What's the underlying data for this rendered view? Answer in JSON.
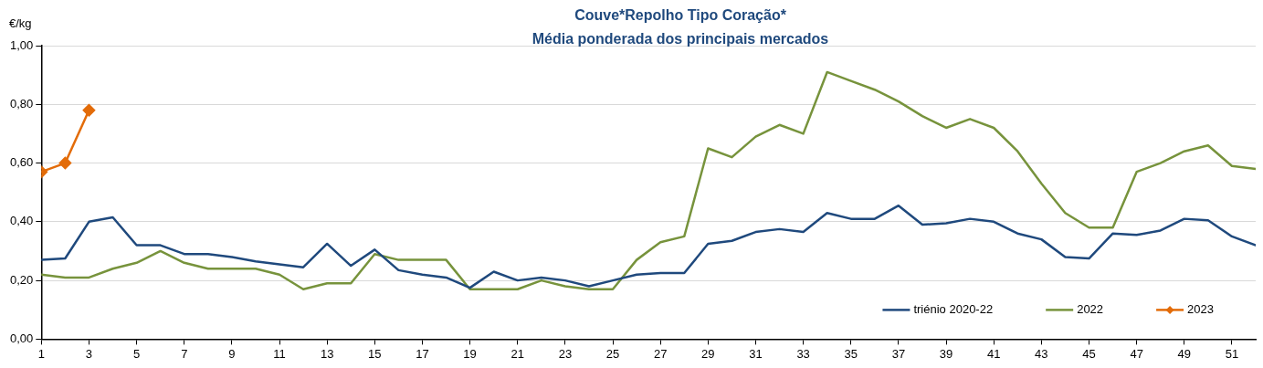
{
  "chart_data": {
    "type": "line",
    "title": "Couve*Repolho Tipo Coração*",
    "subtitle": "Média ponderada dos principais mercados",
    "ylabel": "€/kg",
    "x": [
      1,
      2,
      3,
      4,
      5,
      6,
      7,
      8,
      9,
      10,
      11,
      12,
      13,
      14,
      15,
      16,
      17,
      18,
      19,
      20,
      21,
      22,
      23,
      24,
      25,
      26,
      27,
      28,
      29,
      30,
      31,
      32,
      33,
      34,
      35,
      36,
      37,
      38,
      39,
      40,
      41,
      42,
      43,
      44,
      45,
      46,
      47,
      48,
      49,
      50,
      51,
      52
    ],
    "xlim": [
      1,
      52
    ],
    "xticks": [
      1,
      3,
      5,
      7,
      9,
      11,
      13,
      15,
      17,
      19,
      21,
      23,
      25,
      27,
      29,
      31,
      33,
      35,
      37,
      39,
      41,
      43,
      45,
      47,
      49,
      51
    ],
    "ylim": [
      0,
      1
    ],
    "yticks": [
      {
        "value": 0,
        "label": "0,00"
      },
      {
        "value": 0.2,
        "label": "0,20"
      },
      {
        "value": 0.4,
        "label": "0,40"
      },
      {
        "value": 0.6,
        "label": "0,60"
      },
      {
        "value": 0.8,
        "label": "0,80"
      },
      {
        "value": 1,
        "label": "1,00"
      }
    ],
    "grid": "y",
    "legend": "bottom right",
    "line_style": "solid",
    "series": [
      {
        "name": "triénio 2020-22",
        "color": "#1f497d",
        "marker": "none",
        "values": [
          0.27,
          0.275,
          0.4,
          0.415,
          0.32,
          0.32,
          0.29,
          0.29,
          0.28,
          0.265,
          0.255,
          0.245,
          0.325,
          0.25,
          0.305,
          0.235,
          0.22,
          0.21,
          0.175,
          0.23,
          0.2,
          0.21,
          0.2,
          0.18,
          0.2,
          0.22,
          0.225,
          0.225,
          0.325,
          0.335,
          0.365,
          0.375,
          0.365,
          0.43,
          0.41,
          0.41,
          0.455,
          0.39,
          0.395,
          0.41,
          0.4,
          0.36,
          0.34,
          0.28,
          0.275,
          0.36,
          0.355,
          0.37,
          0.41,
          0.405,
          0.35,
          0.32
        ]
      },
      {
        "name": "2022",
        "color": "#77933c",
        "marker": "none",
        "values": [
          0.22,
          0.21,
          0.21,
          0.24,
          0.26,
          0.3,
          0.26,
          0.24,
          0.24,
          0.24,
          0.22,
          0.17,
          0.19,
          0.19,
          0.29,
          0.27,
          0.27,
          0.27,
          0.17,
          0.17,
          0.17,
          0.2,
          0.18,
          0.17,
          0.17,
          0.27,
          0.33,
          0.35,
          0.65,
          0.62,
          0.69,
          0.73,
          0.7,
          0.91,
          0.88,
          0.85,
          0.81,
          0.76,
          0.72,
          0.75,
          0.72,
          0.64,
          0.53,
          0.43,
          0.38,
          0.38,
          0.57,
          0.6,
          0.64,
          0.66,
          0.59,
          0.58
        ]
      },
      {
        "name": "2023",
        "color": "#e36c09",
        "marker": "diamond",
        "values": [
          0.57,
          0.6,
          0.78,
          null,
          null,
          null,
          null,
          null,
          null,
          null,
          null,
          null,
          null,
          null,
          null,
          null,
          null,
          null,
          null,
          null,
          null,
          null,
          null,
          null,
          null,
          null,
          null,
          null,
          null,
          null,
          null,
          null,
          null,
          null,
          null,
          null,
          null,
          null,
          null,
          null,
          null,
          null,
          null,
          null,
          null,
          null,
          null,
          null,
          null,
          null,
          null,
          null
        ]
      }
    ]
  }
}
